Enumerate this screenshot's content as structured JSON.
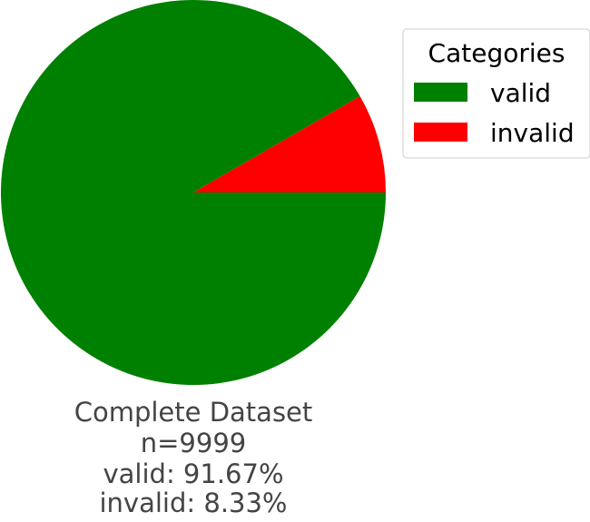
{
  "chart_data": {
    "type": "pie",
    "legend_title": "Categories",
    "legend_position": "top-right",
    "categories": [
      "valid",
      "invalid"
    ],
    "values": [
      91.67,
      8.33
    ],
    "colors": [
      "#008000",
      "#ff0000"
    ],
    "caption_lines": [
      "Complete Dataset",
      "n=9999",
      "valid: 91.67%",
      "invalid: 8.33%"
    ],
    "text_color": "#444444",
    "start_angle_deg": 0,
    "direction": "clockwise"
  }
}
